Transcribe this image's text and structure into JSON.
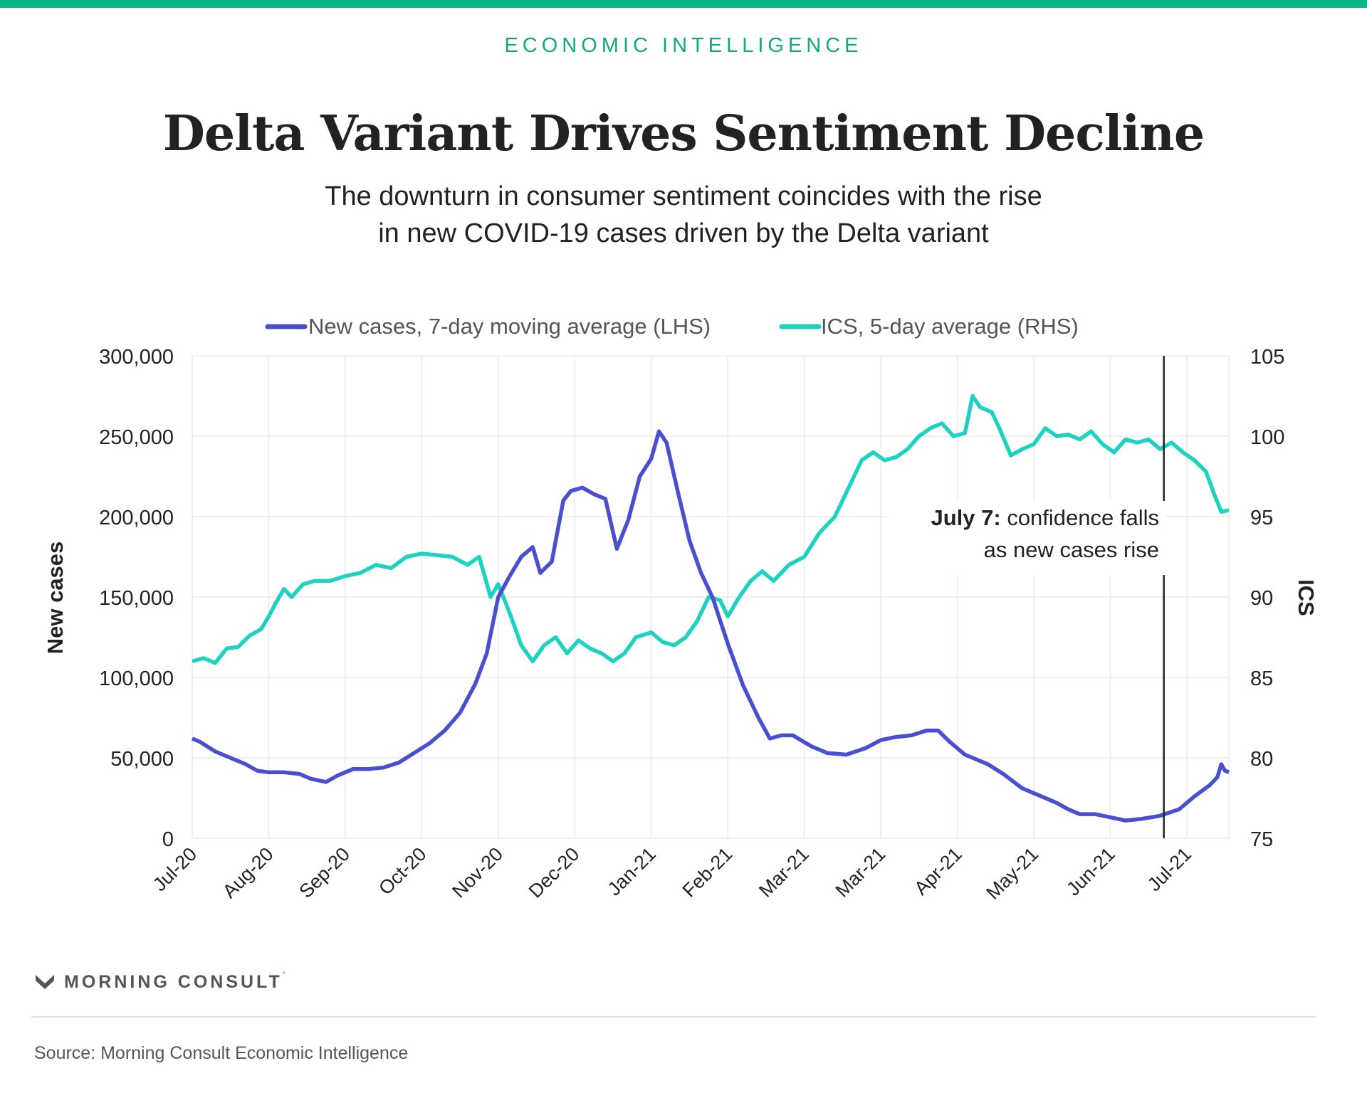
{
  "header": {
    "kicker": "ECONOMIC INTELLIGENCE",
    "title": "Delta Variant Drives Sentiment Decline",
    "subtitle_line1": "The downturn in consumer sentiment coincides with the rise",
    "subtitle_line2": "in new COVID-19 cases driven by the Delta variant"
  },
  "footer": {
    "brand": "MORNING CONSULT",
    "brand_mark": "M-logo-icon",
    "source": "Source: Morning Consult Economic Intelligence"
  },
  "colors": {
    "accent": "#0bb78a",
    "cases": "#4a4fcf",
    "ics": "#1dd3c0",
    "marker": "#222222"
  },
  "chart_data": {
    "type": "line",
    "x_labels": [
      "Jul-20",
      "Aug-20",
      "Sep-20",
      "Oct-20",
      "Nov-20",
      "Dec-20",
      "Jan-21",
      "Feb-21",
      "Mar-21",
      "Mar-21",
      "Apr-21",
      "May-21",
      "Jun-21",
      "Jul-21"
    ],
    "ylabel_left": "New cases",
    "ylabel_right": "ICS",
    "ylim_left": [
      0,
      300000
    ],
    "ylim_right": [
      75,
      105
    ],
    "y_ticks_left": [
      "300,000",
      "250,000",
      "200,000",
      "150,000",
      "100,000",
      "50,000",
      "0"
    ],
    "y_ticks_right": [
      "105",
      "100",
      "95",
      "90",
      "85",
      "80",
      "75"
    ],
    "grid": true,
    "legend_position": "top",
    "series": [
      {
        "name": "New cases, 7-day moving average (LHS)",
        "axis": "left",
        "points": [
          [
            0,
            62000
          ],
          [
            0.1,
            60000
          ],
          [
            0.3,
            54000
          ],
          [
            0.5,
            50000
          ],
          [
            0.7,
            46000
          ],
          [
            0.85,
            42000
          ],
          [
            1,
            41000
          ],
          [
            1.2,
            41000
          ],
          [
            1.4,
            40000
          ],
          [
            1.55,
            37000
          ],
          [
            1.75,
            35000
          ],
          [
            1.9,
            39000
          ],
          [
            2.1,
            43000
          ],
          [
            2.3,
            43000
          ],
          [
            2.5,
            44000
          ],
          [
            2.7,
            47000
          ],
          [
            2.9,
            53000
          ],
          [
            3.1,
            59000
          ],
          [
            3.3,
            67000
          ],
          [
            3.5,
            78000
          ],
          [
            3.7,
            96000
          ],
          [
            3.85,
            115000
          ],
          [
            4.0,
            150000
          ],
          [
            4.15,
            163000
          ],
          [
            4.3,
            175000
          ],
          [
            4.45,
            181000
          ],
          [
            4.55,
            165000
          ],
          [
            4.7,
            172000
          ],
          [
            4.85,
            210000
          ],
          [
            4.95,
            216000
          ],
          [
            5.1,
            218000
          ],
          [
            5.25,
            214000
          ],
          [
            5.4,
            211000
          ],
          [
            5.55,
            180000
          ],
          [
            5.7,
            198000
          ],
          [
            5.85,
            225000
          ],
          [
            6.0,
            236000
          ],
          [
            6.1,
            253000
          ],
          [
            6.2,
            246000
          ],
          [
            6.35,
            215000
          ],
          [
            6.5,
            185000
          ],
          [
            6.65,
            165000
          ],
          [
            6.8,
            150000
          ],
          [
            7.0,
            121000
          ],
          [
            7.2,
            95000
          ],
          [
            7.4,
            75000
          ],
          [
            7.55,
            62000
          ],
          [
            7.7,
            64000
          ],
          [
            7.85,
            64000
          ],
          [
            8.1,
            57000
          ],
          [
            8.3,
            53000
          ],
          [
            8.55,
            52000
          ],
          [
            8.8,
            56000
          ],
          [
            9.0,
            61000
          ],
          [
            9.2,
            63000
          ],
          [
            9.4,
            64000
          ],
          [
            9.6,
            67000
          ],
          [
            9.75,
            67000
          ],
          [
            9.9,
            60000
          ],
          [
            10.1,
            52000
          ],
          [
            10.4,
            46000
          ],
          [
            10.6,
            40000
          ],
          [
            10.85,
            31000
          ],
          [
            11.1,
            26000
          ],
          [
            11.3,
            22000
          ],
          [
            11.45,
            18000
          ],
          [
            11.6,
            15000
          ],
          [
            11.8,
            15000
          ],
          [
            12.0,
            13000
          ],
          [
            12.2,
            11000
          ],
          [
            12.4,
            12000
          ],
          [
            12.65,
            14000
          ],
          [
            12.9,
            18000
          ],
          [
            13.1,
            26000
          ],
          [
            13.3,
            33000
          ],
          [
            13.4,
            38000
          ],
          [
            13.45,
            46000
          ],
          [
            13.5,
            42000
          ],
          [
            13.55,
            41000
          ]
        ]
      },
      {
        "name": "ICS, 5-day average (RHS)",
        "axis": "right",
        "points": [
          [
            0,
            86.0
          ],
          [
            0.15,
            86.2
          ],
          [
            0.3,
            85.9
          ],
          [
            0.45,
            86.8
          ],
          [
            0.6,
            86.9
          ],
          [
            0.75,
            87.6
          ],
          [
            0.9,
            88.0
          ],
          [
            1.0,
            88.8
          ],
          [
            1.1,
            89.7
          ],
          [
            1.2,
            90.5
          ],
          [
            1.3,
            90.0
          ],
          [
            1.45,
            90.8
          ],
          [
            1.6,
            91.0
          ],
          [
            1.8,
            91.0
          ],
          [
            2.0,
            91.3
          ],
          [
            2.2,
            91.5
          ],
          [
            2.4,
            92.0
          ],
          [
            2.6,
            91.8
          ],
          [
            2.8,
            92.5
          ],
          [
            3.0,
            92.7
          ],
          [
            3.2,
            92.6
          ],
          [
            3.4,
            92.5
          ],
          [
            3.6,
            92.0
          ],
          [
            3.75,
            92.5
          ],
          [
            3.9,
            90.0
          ],
          [
            4.0,
            90.8
          ],
          [
            4.15,
            89.0
          ],
          [
            4.3,
            87.0
          ],
          [
            4.45,
            86.0
          ],
          [
            4.6,
            87.0
          ],
          [
            4.75,
            87.5
          ],
          [
            4.9,
            86.5
          ],
          [
            5.05,
            87.3
          ],
          [
            5.2,
            86.8
          ],
          [
            5.35,
            86.5
          ],
          [
            5.5,
            86.0
          ],
          [
            5.65,
            86.5
          ],
          [
            5.8,
            87.5
          ],
          [
            6.0,
            87.8
          ],
          [
            6.15,
            87.2
          ],
          [
            6.3,
            87.0
          ],
          [
            6.45,
            87.5
          ],
          [
            6.6,
            88.5
          ],
          [
            6.75,
            90.0
          ],
          [
            6.9,
            89.8
          ],
          [
            7.0,
            88.8
          ],
          [
            7.15,
            90.0
          ],
          [
            7.3,
            91.0
          ],
          [
            7.45,
            91.6
          ],
          [
            7.6,
            91.0
          ],
          [
            7.8,
            92.0
          ],
          [
            8.0,
            92.5
          ],
          [
            8.2,
            94.0
          ],
          [
            8.4,
            95.0
          ],
          [
            8.6,
            97.0
          ],
          [
            8.75,
            98.5
          ],
          [
            8.9,
            99.0
          ],
          [
            9.05,
            98.5
          ],
          [
            9.2,
            98.7
          ],
          [
            9.35,
            99.2
          ],
          [
            9.5,
            100.0
          ],
          [
            9.65,
            100.5
          ],
          [
            9.8,
            100.8
          ],
          [
            9.95,
            100.0
          ],
          [
            10.1,
            100.2
          ],
          [
            10.2,
            102.5
          ],
          [
            10.3,
            101.8
          ],
          [
            10.45,
            101.5
          ],
          [
            10.55,
            100.5
          ],
          [
            10.7,
            98.8
          ],
          [
            10.85,
            99.2
          ],
          [
            11.0,
            99.5
          ],
          [
            11.15,
            100.5
          ],
          [
            11.3,
            100.0
          ],
          [
            11.45,
            100.1
          ],
          [
            11.6,
            99.8
          ],
          [
            11.75,
            100.3
          ],
          [
            11.9,
            99.5
          ],
          [
            12.05,
            99.0
          ],
          [
            12.2,
            99.8
          ],
          [
            12.35,
            99.6
          ],
          [
            12.5,
            99.8
          ],
          [
            12.65,
            99.2
          ],
          [
            12.8,
            99.6
          ],
          [
            12.95,
            99.0
          ],
          [
            13.1,
            98.5
          ],
          [
            13.25,
            97.8
          ],
          [
            13.35,
            96.5
          ],
          [
            13.45,
            95.3
          ],
          [
            13.55,
            95.4
          ]
        ]
      }
    ],
    "vertical_marker_x": 12.7,
    "annotation": {
      "bold": "July 7:",
      "line1": "confidence falls",
      "line2": "as new cases rise"
    }
  }
}
